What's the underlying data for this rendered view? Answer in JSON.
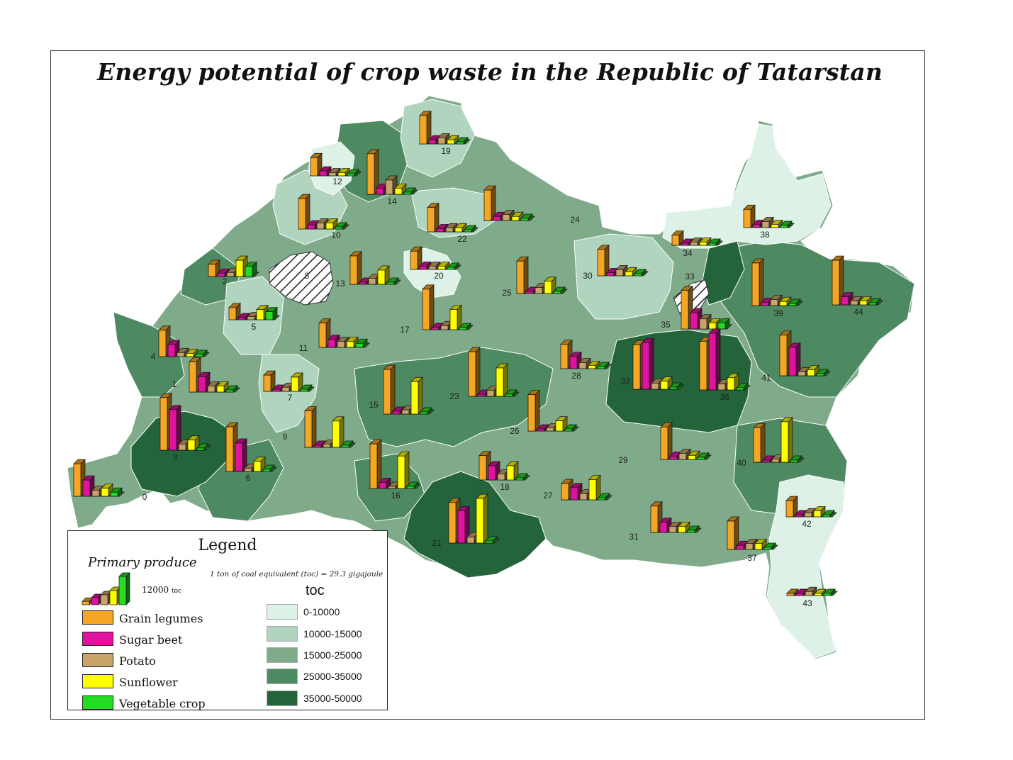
{
  "title": "Energy potential of crop waste in the Republic of Tatarstan",
  "colors": {
    "class1": "#ddf1e7",
    "class2": "#b0d4be",
    "class3": "#7fab8b",
    "class4": "#4e8a61",
    "class5": "#24643a",
    "grain": "#f5a623",
    "sugar": "#e0129e",
    "potato": "#c9a46a",
    "sunflower": "#ffff00",
    "vegetable": "#22dd22"
  },
  "legend": {
    "title": "Legend",
    "subtitle": "Primary produce",
    "note": "1 ton of coal equivalent (toc) = 29.3 gigajoule",
    "scale_value": "12000",
    "scale_unit": "toc",
    "unit_heading": "toc",
    "crops": [
      {
        "label": "Grain legumes",
        "color": "#f5a623"
      },
      {
        "label": "Sugar beet",
        "color": "#e0129e"
      },
      {
        "label": "Potato",
        "color": "#c9a46a"
      },
      {
        "label": "Sunflower",
        "color": "#ffff00"
      },
      {
        "label": "Vegetable crop",
        "color": "#22dd22"
      }
    ],
    "classes": [
      {
        "label": "0-10000",
        "color": "#ddf1e7"
      },
      {
        "label": "10000-15000",
        "color": "#b0d4be"
      },
      {
        "label": "15000-25000",
        "color": "#7fab8b"
      },
      {
        "label": "25000-35000",
        "color": "#4e8a61"
      },
      {
        "label": "35000-50000",
        "color": "#24643a"
      }
    ]
  },
  "districts": [
    {
      "id": "0",
      "values": [
        8000,
        4000,
        1500,
        2000,
        1000
      ]
    },
    {
      "id": "1",
      "values": [
        7500,
        3800,
        1500,
        1500,
        500
      ]
    },
    {
      "id": "2",
      "values": [
        3000,
        800,
        1000,
        4000,
        2500
      ]
    },
    {
      "id": "3",
      "values": [
        13000,
        10000,
        1500,
        2500,
        500
      ]
    },
    {
      "id": "4",
      "values": [
        6500,
        3000,
        1000,
        800,
        500
      ]
    },
    {
      "id": "5",
      "values": [
        3000,
        500,
        800,
        2500,
        2000
      ]
    },
    {
      "id": "6",
      "values": [
        11000,
        7000,
        800,
        2500,
        500
      ]
    },
    {
      "id": "7",
      "values": [
        4000,
        500,
        1000,
        3500,
        500
      ]
    },
    {
      "id": "8",
      "values": []
    },
    {
      "id": "9",
      "values": [
        9000,
        500,
        800,
        6500,
        500
      ]
    },
    {
      "id": "10",
      "values": [
        7500,
        1000,
        1500,
        1500,
        500
      ]
    },
    {
      "id": "11",
      "values": [
        6000,
        2000,
        1500,
        1500,
        1000
      ]
    },
    {
      "id": "12",
      "values": [
        4500,
        1200,
        800,
        800,
        500
      ]
    },
    {
      "id": "13",
      "values": [
        7000,
        500,
        1500,
        3500,
        500
      ]
    },
    {
      "id": "14",
      "values": [
        10000,
        1500,
        3500,
        1500,
        500
      ]
    },
    {
      "id": "15",
      "values": [
        11000,
        700,
        1000,
        8000,
        500
      ]
    },
    {
      "id": "16",
      "values": [
        11000,
        1500,
        500,
        8000,
        500
      ]
    },
    {
      "id": "17",
      "values": [
        10000,
        500,
        1000,
        5000,
        500
      ]
    },
    {
      "id": "18",
      "values": [
        6000,
        3500,
        1500,
        3500,
        500
      ]
    },
    {
      "id": "19",
      "values": [
        7000,
        1000,
        1500,
        1000,
        500
      ]
    },
    {
      "id": "20",
      "values": [
        4500,
        800,
        800,
        800,
        500
      ]
    },
    {
      "id": "21",
      "values": [
        10000,
        8000,
        1500,
        11000,
        500
      ]
    },
    {
      "id": "22",
      "values": [
        6000,
        800,
        1000,
        1000,
        500
      ]
    },
    {
      "id": "23",
      "values": [
        11000,
        500,
        1500,
        7000,
        500
      ]
    },
    {
      "id": "24",
      "values": [
        7500,
        1000,
        1500,
        1000,
        500
      ]
    },
    {
      "id": "25",
      "values": [
        8000,
        500,
        1500,
        3000,
        500
      ]
    },
    {
      "id": "26",
      "values": [
        9000,
        500,
        800,
        2500,
        500
      ]
    },
    {
      "id": "27",
      "values": [
        4000,
        3000,
        1500,
        5000,
        500
      ]
    },
    {
      "id": "28",
      "values": [
        6000,
        3000,
        1500,
        800,
        500
      ]
    },
    {
      "id": "29",
      "values": [
        8000,
        800,
        1500,
        1000,
        500
      ]
    },
    {
      "id": "30",
      "values": [
        6500,
        800,
        1500,
        1000,
        500
      ]
    },
    {
      "id": "31",
      "values": [
        6500,
        2500,
        1500,
        1500,
        500
      ]
    },
    {
      "id": "32",
      "values": [
        11000,
        11500,
        1500,
        2000,
        500
      ]
    },
    {
      "id": "33",
      "values": [
        9500,
        4000,
        2500,
        1500,
        1500
      ]
    },
    {
      "id": "34",
      "values": [
        2500,
        500,
        800,
        800,
        500
      ]
    },
    {
      "id": "35",
      "values": []
    },
    {
      "id": "36",
      "values": [
        12000,
        14000,
        1500,
        3000,
        500
      ]
    },
    {
      "id": "37",
      "values": [
        7000,
        1000,
        1500,
        1500,
        500
      ]
    },
    {
      "id": "38",
      "values": [
        4500,
        800,
        1500,
        800,
        500
      ]
    },
    {
      "id": "39",
      "values": [
        10500,
        800,
        1500,
        1000,
        500
      ]
    },
    {
      "id": "40",
      "values": [
        8500,
        500,
        800,
        10000,
        500
      ]
    },
    {
      "id": "41",
      "values": [
        10000,
        7000,
        1000,
        1500,
        500
      ]
    },
    {
      "id": "42",
      "values": [
        4000,
        500,
        1000,
        1500,
        500
      ]
    },
    {
      "id": "43",
      "values": [
        500,
        500,
        1000,
        500,
        500
      ]
    },
    {
      "id": "44",
      "values": [
        11000,
        2000,
        1000,
        1000,
        500
      ]
    }
  ]
}
